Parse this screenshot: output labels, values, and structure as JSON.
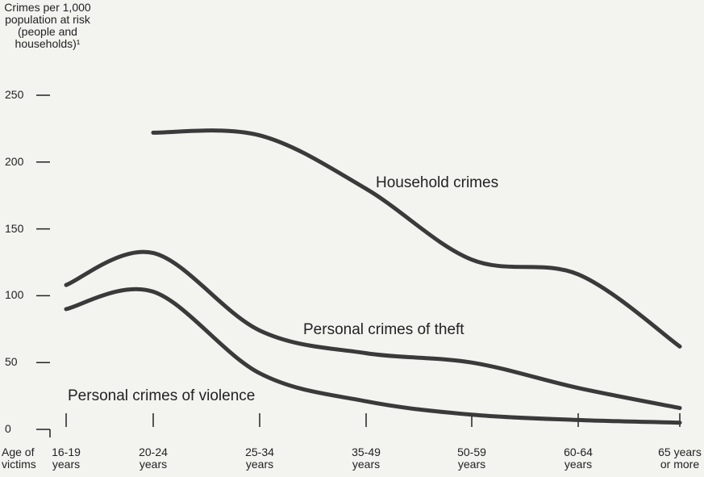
{
  "chart_data": {
    "type": "line",
    "y_label": "Crimes per 1,000 population at risk (people and households)¹",
    "x_label": "Age of victims",
    "categories": [
      "16-19 years",
      "20-24 years",
      "25-34 years",
      "35-49 years",
      "50-59 years",
      "60-64 years",
      "65 years or more"
    ],
    "series": [
      {
        "name": "Household crimes",
        "color": "#3a3a3a",
        "values": [
          null,
          222,
          220,
          180,
          127,
          116,
          62
        ]
      },
      {
        "name": "Personal crimes of theft",
        "color": "#3a3a3a",
        "values": [
          108,
          132,
          74,
          57,
          50,
          31,
          16
        ]
      },
      {
        "name": "Personal crimes of violence",
        "color": "#3a3a3a",
        "values": [
          90,
          103,
          42,
          21,
          11,
          7,
          5
        ]
      }
    ],
    "ylim": [
      0,
      250
    ],
    "yticks": [
      0,
      50,
      100,
      150,
      200,
      250
    ]
  }
}
